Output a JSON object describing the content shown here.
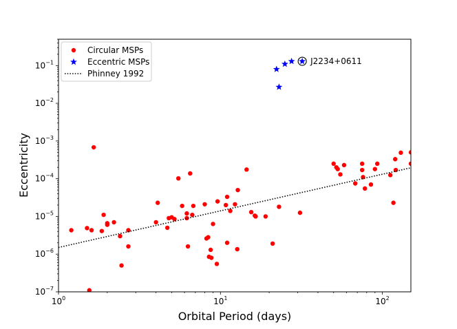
{
  "chart_data": {
    "type": "scatter",
    "xscale": "log",
    "yscale": "log",
    "xlabel": "Orbital Period (days)",
    "ylabel": "Eccentricity",
    "xlim": [
      1,
      150
    ],
    "ylim": [
      1e-07,
      0.5
    ],
    "xticks": [
      {
        "value": 1,
        "base": "10",
        "exp": "0"
      },
      {
        "value": 10,
        "base": "10",
        "exp": "1"
      },
      {
        "value": 100,
        "base": "10",
        "exp": "2"
      }
    ],
    "yticks": [
      {
        "value": 1e-07,
        "base": "10",
        "exp": "−7"
      },
      {
        "value": 1e-06,
        "base": "10",
        "exp": "−6"
      },
      {
        "value": 1e-05,
        "base": "10",
        "exp": "−5"
      },
      {
        "value": 0.0001,
        "base": "10",
        "exp": "−4"
      },
      {
        "value": 0.001,
        "base": "10",
        "exp": "−3"
      },
      {
        "value": 0.01,
        "base": "10",
        "exp": "−2"
      },
      {
        "value": 0.1,
        "base": "10",
        "exp": "−1"
      }
    ],
    "series": [
      {
        "name": "Circular MSPs",
        "marker": "circle",
        "color": "#ff0000",
        "points": [
          [
            1.2,
            4.3e-06
          ],
          [
            1.5,
            4.9e-06
          ],
          [
            1.55,
            1.1e-07
          ],
          [
            1.6,
            4.3e-06
          ],
          [
            1.65,
            0.00068
          ],
          [
            1.85,
            4.1e-06
          ],
          [
            1.9,
            1.1e-05
          ],
          [
            2.0,
            6e-06
          ],
          [
            2.0,
            6.6e-06
          ],
          [
            2.2,
            7e-06
          ],
          [
            2.4,
            3e-06
          ],
          [
            2.45,
            5e-07
          ],
          [
            2.7,
            4.3e-06
          ],
          [
            2.7,
            1.6e-06
          ],
          [
            4.0,
            7e-06
          ],
          [
            4.1,
            2.3e-05
          ],
          [
            4.7,
            5e-06
          ],
          [
            4.8,
            9e-06
          ],
          [
            5.0,
            9.5e-06
          ],
          [
            5.2,
            8.5e-06
          ],
          [
            5.5,
            0.000102
          ],
          [
            5.8,
            1.9e-05
          ],
          [
            6.2,
            1.2e-05
          ],
          [
            6.2,
            9e-06
          ],
          [
            6.3,
            1.6e-06
          ],
          [
            6.5,
            0.000138
          ],
          [
            6.7,
            1.1e-05
          ],
          [
            6.8,
            1.9e-05
          ],
          [
            8.0,
            2.1e-05
          ],
          [
            8.2,
            2.6e-06
          ],
          [
            8.4,
            2.8e-06
          ],
          [
            8.5,
            8.5e-07
          ],
          [
            8.7,
            1.3e-06
          ],
          [
            8.8,
            8e-07
          ],
          [
            9.0,
            6.3e-06
          ],
          [
            9.5,
            5.5e-07
          ],
          [
            9.6,
            2.5e-05
          ],
          [
            10.8,
            2e-05
          ],
          [
            11.0,
            3.3e-05
          ],
          [
            11.0,
            2e-06
          ],
          [
            11.5,
            1.4e-05
          ],
          [
            12.3,
            2.1e-05
          ],
          [
            12.7,
            1.35e-06
          ],
          [
            12.8,
            5e-05
          ],
          [
            14.5,
            0.000175
          ],
          [
            15.5,
            1.3e-05
          ],
          [
            16.3,
            1.05e-05
          ],
          [
            16.5,
            1e-05
          ],
          [
            19.0,
            1e-05
          ],
          [
            21.0,
            1.9e-06
          ],
          [
            23.0,
            1.8e-05
          ],
          [
            31.0,
            1.25e-05
          ],
          [
            50.0,
            0.00025
          ],
          [
            52.0,
            0.0002
          ],
          [
            53.0,
            0.00018
          ],
          [
            55.0,
            0.00013
          ],
          [
            58.0,
            0.00023
          ],
          [
            68.0,
            7.5e-05
          ],
          [
            75.0,
            0.00025
          ],
          [
            75.0,
            0.00017
          ],
          [
            76.0,
            0.00011
          ],
          [
            78.0,
            5.5e-05
          ],
          [
            85.0,
            7e-05
          ],
          [
            90.0,
            0.00018
          ],
          [
            93.0,
            0.00025
          ],
          [
            112.0,
            0.000125
          ],
          [
            117.0,
            2.3e-05
          ],
          [
            120.0,
            0.00033
          ],
          [
            121.0,
            0.00017
          ],
          [
            130.0,
            0.00049
          ],
          [
            150.0,
            0.0005
          ],
          [
            150.0,
            0.00025
          ]
        ]
      },
      {
        "name": "Eccentric MSPs",
        "marker": "star",
        "color": "#0000ff",
        "points": [
          [
            22.2,
            0.08
          ],
          [
            23.0,
            0.027
          ],
          [
            25.0,
            0.11
          ],
          [
            27.5,
            0.13
          ],
          [
            32.0,
            0.13
          ]
        ]
      },
      {
        "name": "Phinney 1992",
        "marker": "dotted-line",
        "color": "#000000",
        "points": [
          [
            1,
            1.5e-06
          ],
          [
            150,
            0.000195
          ]
        ]
      }
    ],
    "annotations": [
      {
        "text": "J2234+0611",
        "x": 32.0,
        "y": 0.13,
        "circled": true
      }
    ],
    "legend": {
      "position": "top-left"
    }
  }
}
